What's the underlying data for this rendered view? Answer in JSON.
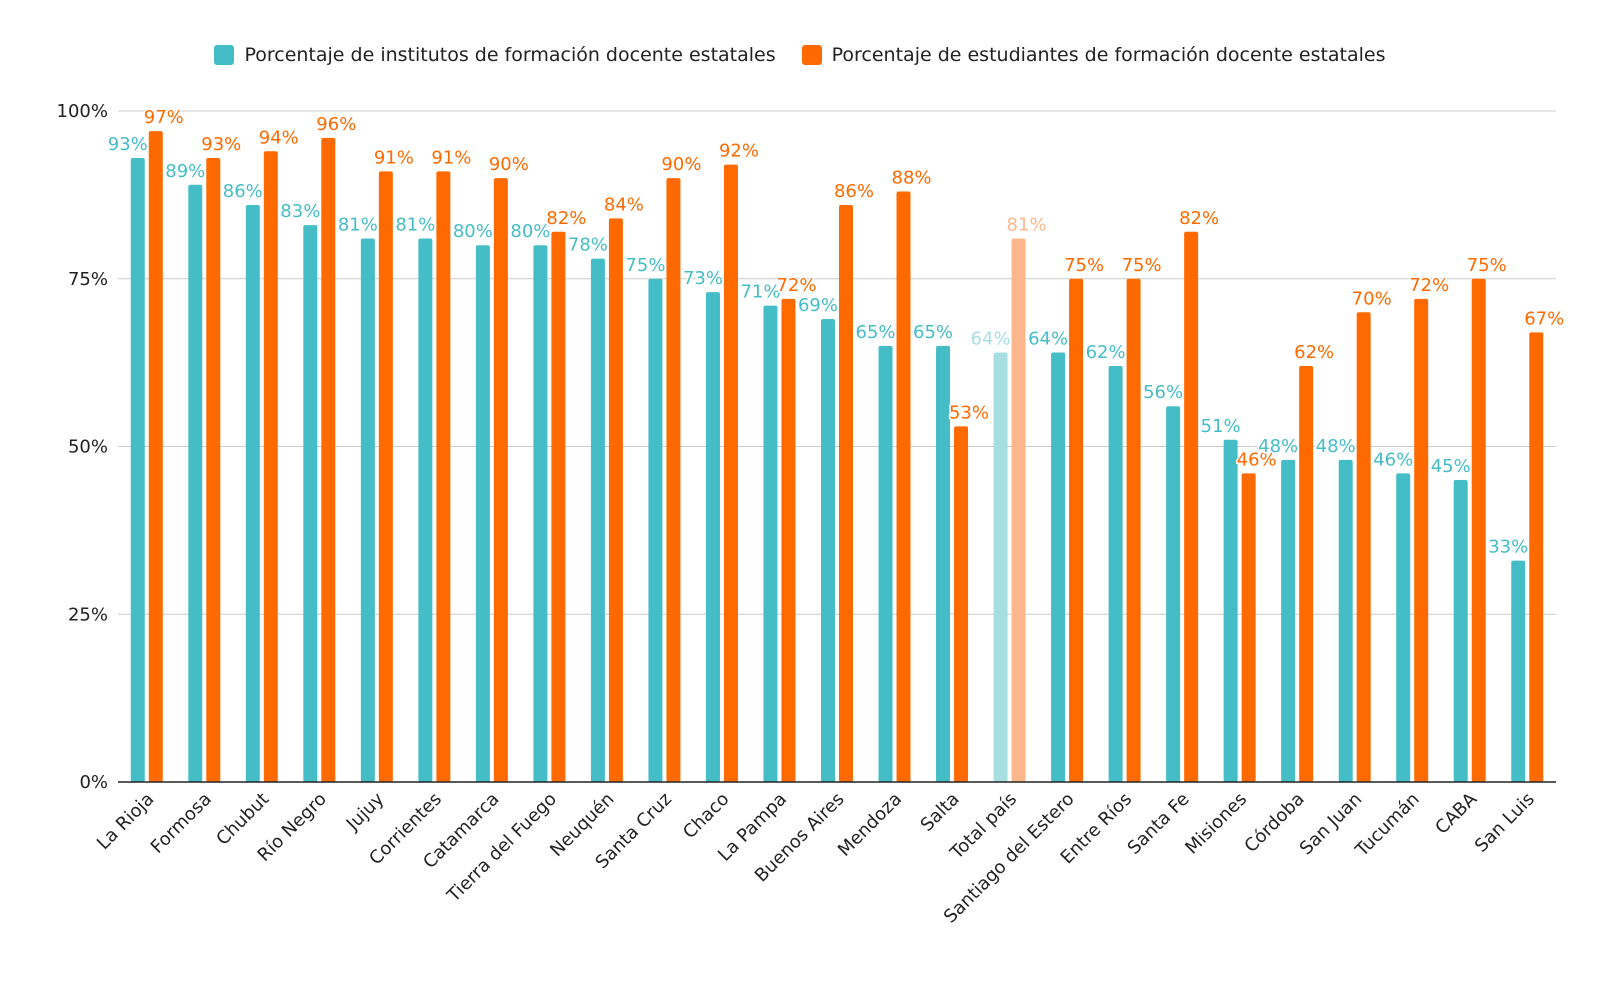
{
  "legend": {
    "series0": "Porcentaje de institutos de formación docente estatales",
    "series1": "Porcentaje de estudiantes de formación docente estatales"
  },
  "colors": {
    "series0": "#45BDC7",
    "series1": "#FF6A00",
    "series0_highlight": "#A6DEE2",
    "series1_highlight": "#FBB78C",
    "grid": "#cccccc",
    "axis": "#222222"
  },
  "chart_data": {
    "type": "bar",
    "highlight_category": "Total país",
    "categories": [
      "La Rioja",
      "Formosa",
      "Chubut",
      "Río Negro",
      "Jujuy",
      "Corrientes",
      "Catamarca",
      "Tierra del Fuego",
      "Neuquén",
      "Santa Cruz",
      "Chaco",
      "La Pampa",
      "Buenos Aires",
      "Mendoza",
      "Salta",
      "Total país",
      "Santiago del Estero",
      "Entre Ríos",
      "Santa Fe",
      "Misiones",
      "Córdoba",
      "San Juan",
      "Tucumán",
      "CABA",
      "San Luis"
    ],
    "series": [
      {
        "name": "Porcentaje de institutos de formación docente estatales",
        "values": [
          93,
          89,
          86,
          83,
          81,
          81,
          80,
          80,
          78,
          75,
          73,
          71,
          69,
          65,
          65,
          64,
          64,
          62,
          56,
          51,
          48,
          48,
          46,
          45,
          33
        ],
        "labels": [
          "93%",
          "89%",
          "86%",
          "83%",
          "81%",
          "81%",
          "80%",
          "80%",
          "78%",
          "75%",
          "73%",
          "71%",
          "69%",
          "65%",
          "65%",
          "64%",
          "64%",
          "62%",
          "56%",
          "51%",
          "48%",
          "48%",
          "46%",
          "45%",
          "33%"
        ]
      },
      {
        "name": "Porcentaje de estudiantes de formación docente estatales",
        "values": [
          97,
          93,
          94,
          96,
          91,
          91,
          90,
          82,
          84,
          90,
          92,
          72,
          86,
          88,
          53,
          81,
          75,
          75,
          82,
          46,
          62,
          70,
          72,
          75,
          67
        ],
        "labels": [
          "97%",
          "93%",
          "94%",
          "96%",
          "91%",
          "91%",
          "90%",
          "82%",
          "84%",
          "90%",
          "92%",
          "72%",
          "86%",
          "88%",
          "53%",
          "81%",
          "75%",
          "75%",
          "82%",
          "46%",
          "62%",
          "70%",
          "72%",
          "75%",
          "67%"
        ]
      }
    ],
    "ylim": [
      0,
      100
    ],
    "yticks": [
      "0%",
      "25%",
      "50%",
      "75%",
      "100%"
    ],
    "ytick_values": [
      0,
      25,
      50,
      75,
      100
    ],
    "grid": true,
    "legend_position": "top"
  }
}
